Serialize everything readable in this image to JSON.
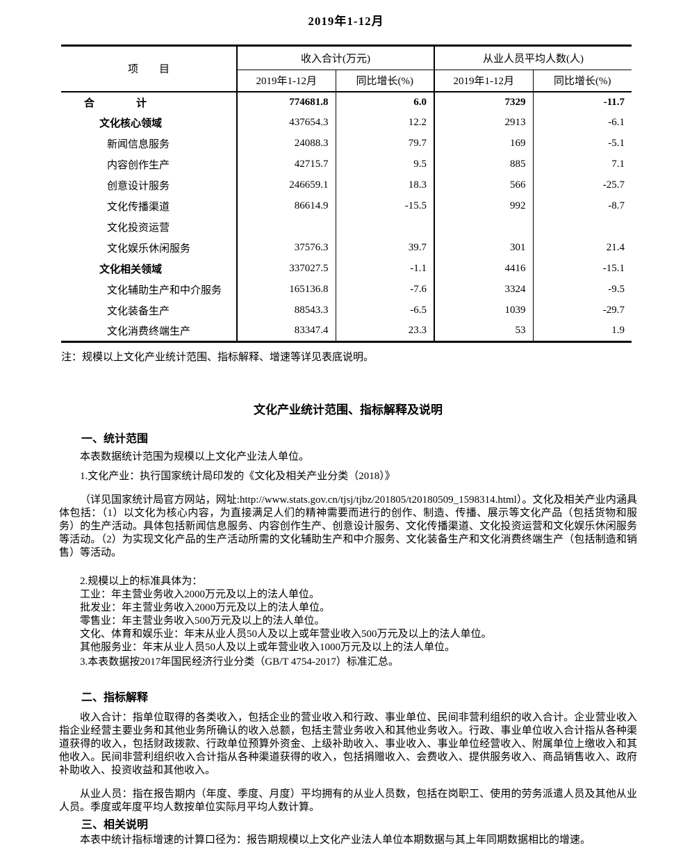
{
  "page_title": "2019年1-12月",
  "table": {
    "header": {
      "item_col": "项　　目",
      "group_income": "收入合计(万元)",
      "group_staff": "从业人员平均人数(人)",
      "sub_period": "2019年1-12月",
      "sub_growth": "同比增长(%)"
    },
    "rows": [
      {
        "label": "合　　　　计",
        "income": "774681.8",
        "income_growth": "6.0",
        "staff": "7329",
        "staff_growth": "-11.7"
      },
      {
        "label": "文化核心领域",
        "income": "437654.3",
        "income_growth": "12.2",
        "staff": "2913",
        "staff_growth": "-6.1"
      },
      {
        "label": "新闻信息服务",
        "income": "24088.3",
        "income_growth": "79.7",
        "staff": "169",
        "staff_growth": "-5.1"
      },
      {
        "label": "内容创作生产",
        "income": "42715.7",
        "income_growth": "9.5",
        "staff": "885",
        "staff_growth": "7.1"
      },
      {
        "label": "创意设计服务",
        "income": "246659.1",
        "income_growth": "18.3",
        "staff": "566",
        "staff_growth": "-25.7"
      },
      {
        "label": "文化传播渠道",
        "income": "86614.9",
        "income_growth": "-15.5",
        "staff": "992",
        "staff_growth": "-8.7"
      },
      {
        "label": "文化投资运营",
        "income": "",
        "income_growth": "",
        "staff": "",
        "staff_growth": ""
      },
      {
        "label": "文化娱乐休闲服务",
        "income": "37576.3",
        "income_growth": "39.7",
        "staff": "301",
        "staff_growth": "21.4"
      },
      {
        "label": "文化相关领域",
        "income": "337027.5",
        "income_growth": "-1.1",
        "staff": "4416",
        "staff_growth": "-15.1"
      },
      {
        "label": "文化辅助生产和中介服务",
        "income": "165136.8",
        "income_growth": "-7.6",
        "staff": "3324",
        "staff_growth": "-9.5"
      },
      {
        "label": "文化装备生产",
        "income": "88543.3",
        "income_growth": "-6.5",
        "staff": "1039",
        "staff_growth": "-29.7"
      },
      {
        "label": "文化消费终端生产",
        "income": "83347.4",
        "income_growth": "23.3",
        "staff": "53",
        "staff_growth": "1.9"
      }
    ],
    "note": "注：规模以上文化产业统计范围、指标解释、增速等详见表底说明。"
  },
  "notes_section": {
    "title": "文化产业统计范围、指标解释及说明",
    "s1_heading": "一、统计范围",
    "s1_p1": "本表数据统计范围为规模以上文化产业法人单位。",
    "s1_p2": "1.文化产业：执行国家统计局印发的《文化及相关产业分类（2018）》",
    "s1_p3": "（详见国家统计局官方网站，网址:http://www.stats.gov.cn/tjsj/tjbz/201805/t20180509_1598314.html）。文化及相关产业内涵具体包括：（1）以文化为核心内容，为直接满足人们的精神需要而进行的创作、制造、传播、展示等文化产品（包括货物和服务）的生产活动。具体包括新闻信息服务、内容创作生产、创意设计服务、文化传播渠道、文化投资运营和文化娱乐休闲服务等活动。（2）为实现文化产品的生产活动所需的文化辅助生产和中介服务、文化装备生产和文化消费终端生产（包括制造和销售）等活动。",
    "s1_list": [
      "2.规模以上的标准具体为：",
      "工业：年主营业务收入2000万元及以上的法人单位。",
      "批发业：年主营业务收入2000万元及以上的法人单位。",
      "零售业：年主营业务收入500万元及以上的法人单位。",
      "文化、体育和娱乐业：年末从业人员50人及以上或年营业收入500万元及以上的法人单位。",
      "其他服务业：年末从业人员50人及以上或年营业收入1000万元及以上的法人单位。"
    ],
    "s1_p5": "3.本表数据按2017年国民经济行业分类（GB/T 4754-2017）标准汇总。",
    "s2_heading": "二、指标解释",
    "s2_p1": "收入合计：指单位取得的各类收入，包括企业的营业收入和行政、事业单位、民间非营利组织的收入合计。企业营业收入指企业经营主要业务和其他业务所确认的收入总额，包括主营业务收入和其他业务收入。行政、事业单位收入合计指从各种渠道获得的收入，包括财政拨款、行政单位预算外资金、上级补助收入、事业收入、事业单位经营收入、附属单位上缴收入和其他收入。民间非营利组织收入合计指从各种渠道获得的收入，包括捐赠收入、会费收入、提供服务收入、商品销售收入、政府补助收入、投资收益和其他收入。",
    "s2_p2": "从业人员：指在报告期内（年度、季度、月度）平均拥有的从业人员数，包括在岗职工、使用的劳务派遣人员及其他从业人员。季度或年度平均人数按单位实际月平均人数计算。",
    "s3_heading": "三、相关说明",
    "s3_p1": "本表中统计指标增速的计算口径为：报告期规模以上文化产业法人单位本期数据与其上年同期数据相比的增速。"
  }
}
